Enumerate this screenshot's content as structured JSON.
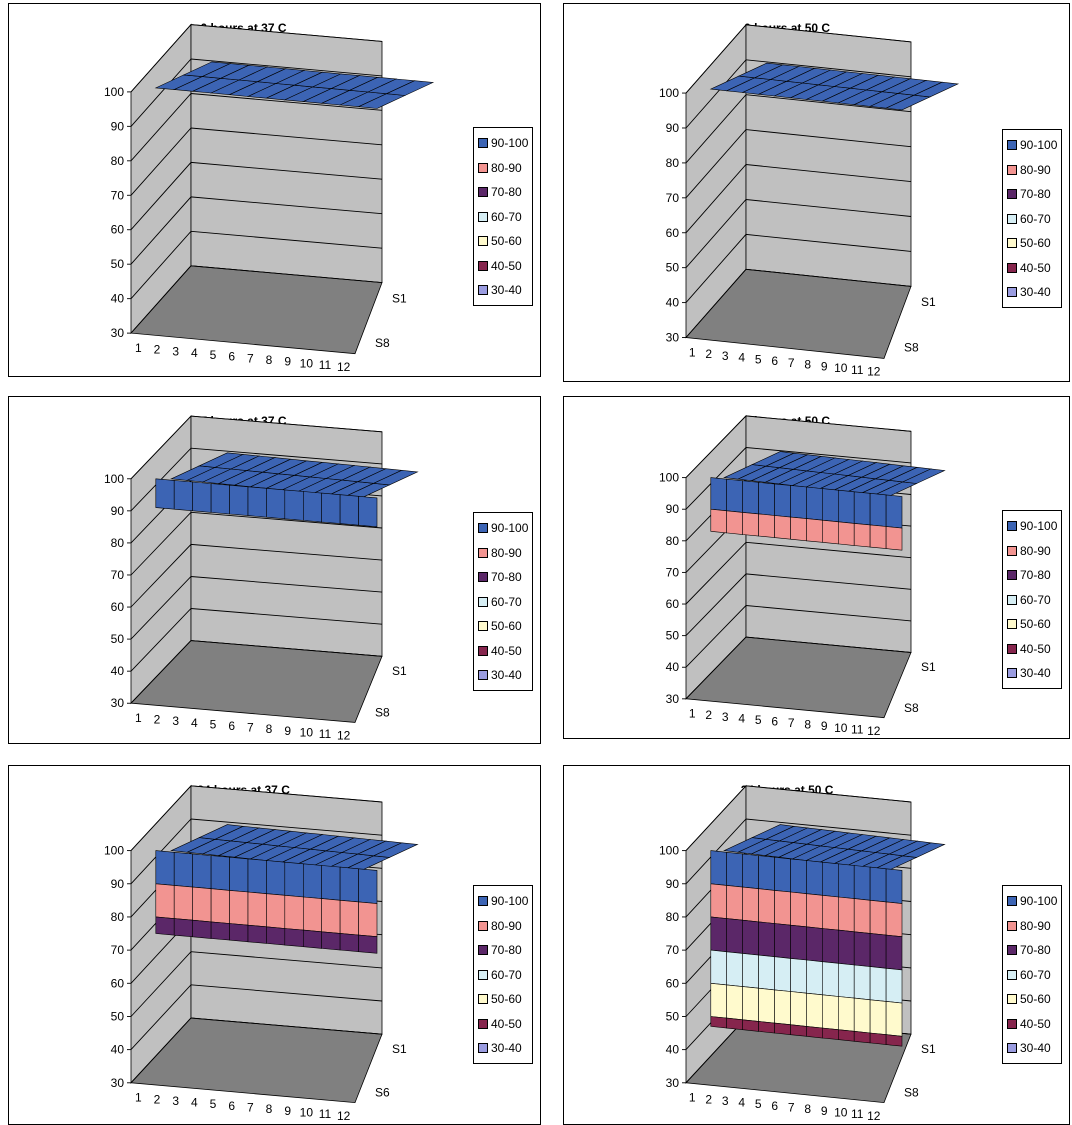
{
  "legend": {
    "entries": [
      {
        "label": "90-100",
        "color": "#3c64b4"
      },
      {
        "label": "80-90",
        "color": "#f29491"
      },
      {
        "label": "70-80",
        "color": "#5b2768"
      },
      {
        "label": "60-70",
        "color": "#d6eef4"
      },
      {
        "label": "50-60",
        "color": "#fffacd"
      },
      {
        "label": "40-50",
        "color": "#86254d"
      },
      {
        "label": "30-40",
        "color": "#9a9ce0"
      }
    ]
  },
  "chart_data": [
    {
      "type": "surface",
      "title": "0 hours at 37 C",
      "x_categories": [
        "1",
        "2",
        "3",
        "4",
        "5",
        "6",
        "7",
        "8",
        "9",
        "10",
        "11",
        "12"
      ],
      "y_series_labels": [
        "S1",
        "S8"
      ],
      "zlim": [
        30,
        100
      ],
      "z_ticks": [
        "30",
        "40",
        "50",
        "60",
        "70",
        "80",
        "90",
        "100"
      ],
      "profile": {
        "top": 100,
        "edge": 100
      },
      "wall_color": "#c0c0c0",
      "floor_color": "#808080"
    },
    {
      "type": "surface",
      "title": "0 hours at 50 C",
      "x_categories": [
        "1",
        "2",
        "3",
        "4",
        "5",
        "6",
        "7",
        "8",
        "9",
        "10",
        "11",
        "12"
      ],
      "y_series_labels": [
        "S1",
        "S8"
      ],
      "zlim": [
        30,
        100
      ],
      "z_ticks": [
        "30",
        "40",
        "50",
        "60",
        "70",
        "80",
        "90",
        "100"
      ],
      "profile": {
        "top": 100,
        "edge": 100
      },
      "wall_color": "#c0c0c0",
      "floor_color": "#808080"
    },
    {
      "type": "surface",
      "title": "7 hours at 37 C",
      "x_categories": [
        "1",
        "2",
        "3",
        "4",
        "5",
        "6",
        "7",
        "8",
        "9",
        "10",
        "11",
        "12"
      ],
      "y_series_labels": [
        "S1",
        "S8"
      ],
      "zlim": [
        30,
        100
      ],
      "z_ticks": [
        "30",
        "40",
        "50",
        "60",
        "70",
        "80",
        "90",
        "100"
      ],
      "profile": {
        "top": 100,
        "edge": 91
      },
      "wall_color": "#c0c0c0",
      "floor_color": "#808080"
    },
    {
      "type": "surface",
      "title": "7 hours at 50 C",
      "x_categories": [
        "1",
        "2",
        "3",
        "4",
        "5",
        "6",
        "7",
        "8",
        "9",
        "10",
        "11",
        "12"
      ],
      "y_series_labels": [
        "S1",
        "S8"
      ],
      "zlim": [
        30,
        100
      ],
      "z_ticks": [
        "30",
        "40",
        "50",
        "60",
        "70",
        "80",
        "90",
        "100"
      ],
      "profile": {
        "top": 100,
        "edge": 83
      },
      "wall_color": "#c0c0c0",
      "floor_color": "#808080"
    },
    {
      "type": "surface",
      "title": "24 hours at 37 C",
      "x_categories": [
        "1",
        "2",
        "3",
        "4",
        "5",
        "6",
        "7",
        "8",
        "9",
        "10",
        "11",
        "12"
      ],
      "y_series_labels": [
        "S1",
        "S6"
      ],
      "zlim": [
        30,
        100
      ],
      "z_ticks": [
        "30",
        "40",
        "50",
        "60",
        "70",
        "80",
        "90",
        "100"
      ],
      "profile": {
        "top": 100,
        "edge": 75
      },
      "wall_color": "#c0c0c0",
      "floor_color": "#808080"
    },
    {
      "type": "surface",
      "title": "24 hours at 50 C",
      "x_categories": [
        "1",
        "2",
        "3",
        "4",
        "5",
        "6",
        "7",
        "8",
        "9",
        "10",
        "11",
        "12"
      ],
      "y_series_labels": [
        "S1",
        "S8"
      ],
      "zlim": [
        30,
        100
      ],
      "z_ticks": [
        "30",
        "40",
        "50",
        "60",
        "70",
        "80",
        "90",
        "100"
      ],
      "profile": {
        "top": 100,
        "edge": 47
      },
      "wall_color": "#c0c0c0",
      "floor_color": "#808080"
    }
  ]
}
